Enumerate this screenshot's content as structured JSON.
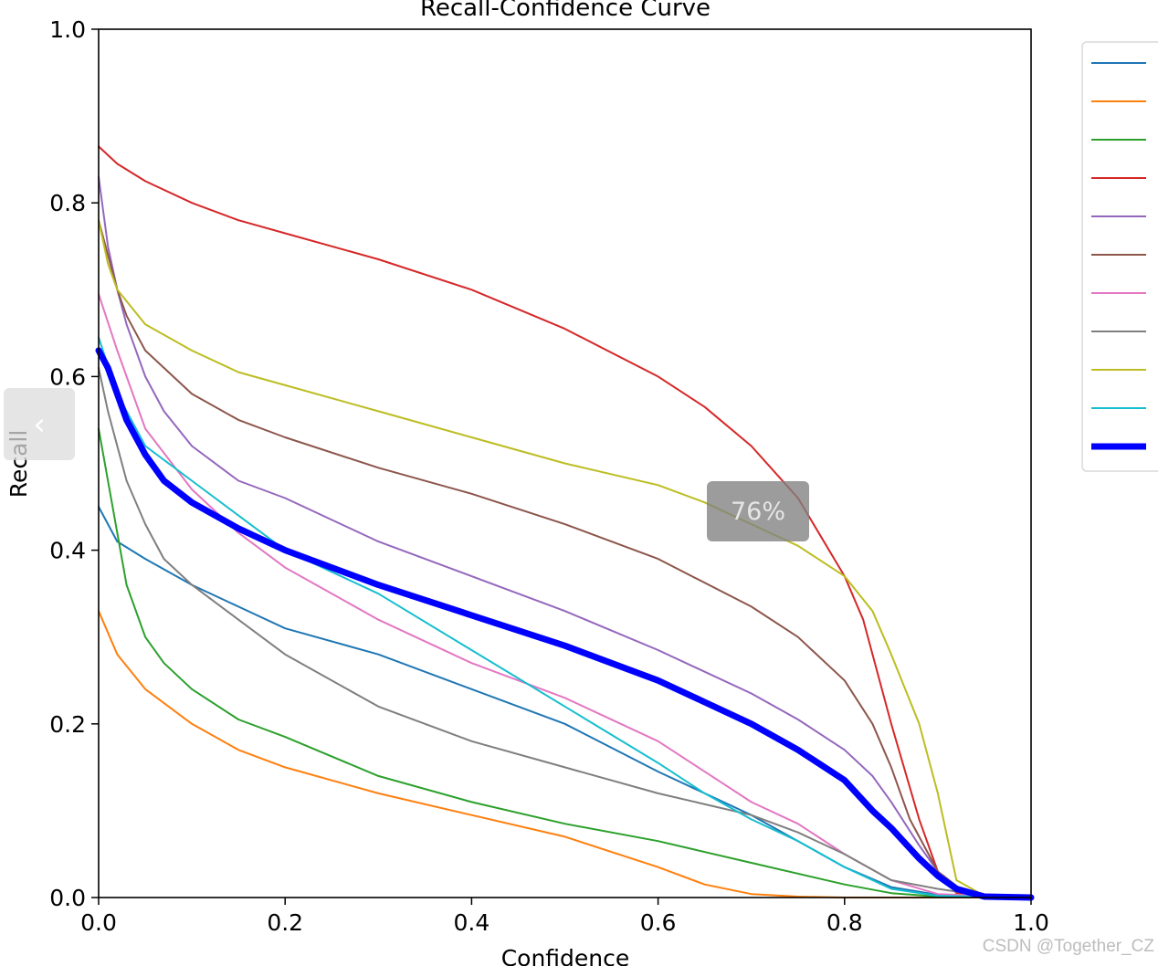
{
  "overlay": {
    "prev_icon": "chevron-left-icon",
    "prev_glyph": "‹",
    "zoom_label": "76%",
    "watermark": "CSDN @Together_CZ"
  },
  "chart_data": {
    "type": "line",
    "title": "Recall-Confidence Curve",
    "xlabel": "Confidence",
    "ylabel": "Recall",
    "xlim": [
      0,
      1
    ],
    "ylim": [
      0,
      1
    ],
    "xticks": [
      "0.0",
      "0.2",
      "0.4",
      "0.6",
      "0.8",
      "1.0"
    ],
    "yticks": [
      "0.0",
      "0.2",
      "0.4",
      "0.6",
      "0.8",
      "1.0"
    ],
    "grid": false,
    "legend": {
      "placement": "right",
      "labels_visible": false
    },
    "series": [
      {
        "color": "#1f77b4",
        "x": [
          0,
          0.02,
          0.05,
          0.1,
          0.15,
          0.2,
          0.3,
          0.4,
          0.5,
          0.6,
          0.7,
          0.75,
          0.8,
          0.85,
          0.9,
          0.95,
          1.0
        ],
        "y": [
          0.45,
          0.41,
          0.39,
          0.36,
          0.335,
          0.31,
          0.28,
          0.24,
          0.2,
          0.145,
          0.095,
          0.065,
          0.035,
          0.012,
          0.003,
          0,
          0
        ]
      },
      {
        "color": "#ff7f0e",
        "x": [
          0,
          0.02,
          0.05,
          0.1,
          0.15,
          0.2,
          0.3,
          0.4,
          0.5,
          0.6,
          0.65,
          0.7,
          0.75,
          0.8,
          0.9,
          1.0
        ],
        "y": [
          0.33,
          0.28,
          0.24,
          0.2,
          0.17,
          0.15,
          0.12,
          0.095,
          0.07,
          0.035,
          0.015,
          0.004,
          0.001,
          0,
          0,
          0
        ]
      },
      {
        "color": "#2ca02c",
        "x": [
          0,
          0.01,
          0.02,
          0.03,
          0.05,
          0.07,
          0.1,
          0.15,
          0.2,
          0.3,
          0.4,
          0.5,
          0.6,
          0.7,
          0.8,
          0.85,
          0.9,
          1.0
        ],
        "y": [
          0.54,
          0.48,
          0.42,
          0.36,
          0.3,
          0.27,
          0.24,
          0.205,
          0.185,
          0.14,
          0.11,
          0.085,
          0.065,
          0.04,
          0.015,
          0.005,
          0.001,
          0
        ]
      },
      {
        "color": "#d62728",
        "x": [
          0,
          0.02,
          0.05,
          0.1,
          0.15,
          0.2,
          0.3,
          0.4,
          0.5,
          0.6,
          0.65,
          0.7,
          0.75,
          0.8,
          0.82,
          0.85,
          0.88,
          0.9,
          0.92,
          0.95,
          1.0
        ],
        "y": [
          0.865,
          0.845,
          0.825,
          0.8,
          0.78,
          0.765,
          0.735,
          0.7,
          0.655,
          0.6,
          0.565,
          0.52,
          0.46,
          0.37,
          0.32,
          0.2,
          0.09,
          0.03,
          0.005,
          0,
          0
        ]
      },
      {
        "color": "#9467bd",
        "x": [
          0,
          0.01,
          0.02,
          0.03,
          0.05,
          0.07,
          0.1,
          0.15,
          0.2,
          0.3,
          0.4,
          0.5,
          0.6,
          0.7,
          0.75,
          0.8,
          0.83,
          0.85,
          0.88,
          0.9,
          0.93,
          1.0
        ],
        "y": [
          0.83,
          0.75,
          0.7,
          0.66,
          0.6,
          0.56,
          0.52,
          0.48,
          0.46,
          0.41,
          0.37,
          0.33,
          0.285,
          0.235,
          0.205,
          0.17,
          0.14,
          0.11,
          0.06,
          0.03,
          0.005,
          0
        ]
      },
      {
        "color": "#8c564b",
        "x": [
          0,
          0.01,
          0.02,
          0.03,
          0.05,
          0.07,
          0.1,
          0.15,
          0.2,
          0.3,
          0.4,
          0.5,
          0.6,
          0.7,
          0.75,
          0.8,
          0.83,
          0.85,
          0.87,
          0.9,
          0.93,
          1.0
        ],
        "y": [
          0.78,
          0.74,
          0.7,
          0.67,
          0.63,
          0.61,
          0.58,
          0.55,
          0.53,
          0.495,
          0.465,
          0.43,
          0.39,
          0.335,
          0.3,
          0.25,
          0.2,
          0.15,
          0.09,
          0.03,
          0.005,
          0
        ]
      },
      {
        "color": "#e377c2",
        "x": [
          0,
          0.02,
          0.05,
          0.1,
          0.15,
          0.2,
          0.3,
          0.4,
          0.5,
          0.6,
          0.65,
          0.7,
          0.75,
          0.8,
          0.85,
          0.9,
          1.0
        ],
        "y": [
          0.695,
          0.63,
          0.54,
          0.47,
          0.42,
          0.38,
          0.32,
          0.27,
          0.23,
          0.18,
          0.145,
          0.11,
          0.085,
          0.05,
          0.02,
          0.004,
          0
        ]
      },
      {
        "color": "#7f7f7f",
        "x": [
          0,
          0.01,
          0.02,
          0.03,
          0.05,
          0.07,
          0.1,
          0.15,
          0.2,
          0.3,
          0.4,
          0.5,
          0.6,
          0.7,
          0.75,
          0.8,
          0.85,
          0.9,
          0.95,
          1.0
        ],
        "y": [
          0.61,
          0.56,
          0.52,
          0.48,
          0.43,
          0.39,
          0.36,
          0.32,
          0.28,
          0.22,
          0.18,
          0.15,
          0.12,
          0.095,
          0.075,
          0.05,
          0.02,
          0.01,
          0.002,
          0
        ]
      },
      {
        "color": "#bcbd22",
        "x": [
          0,
          0.01,
          0.02,
          0.05,
          0.1,
          0.15,
          0.2,
          0.3,
          0.4,
          0.5,
          0.6,
          0.65,
          0.7,
          0.75,
          0.8,
          0.83,
          0.85,
          0.88,
          0.9,
          0.92,
          0.95,
          1.0
        ],
        "y": [
          0.78,
          0.73,
          0.7,
          0.66,
          0.63,
          0.605,
          0.59,
          0.56,
          0.53,
          0.5,
          0.475,
          0.455,
          0.43,
          0.405,
          0.37,
          0.33,
          0.28,
          0.2,
          0.12,
          0.02,
          0.002,
          0
        ]
      },
      {
        "color": "#17becf",
        "x": [
          0,
          0.02,
          0.05,
          0.1,
          0.15,
          0.2,
          0.3,
          0.4,
          0.5,
          0.6,
          0.65,
          0.7,
          0.75,
          0.8,
          0.85,
          0.9,
          1.0
        ],
        "y": [
          0.645,
          0.58,
          0.52,
          0.48,
          0.44,
          0.4,
          0.35,
          0.285,
          0.22,
          0.155,
          0.12,
          0.09,
          0.065,
          0.035,
          0.01,
          0.002,
          0
        ]
      },
      {
        "color": "#0000ff",
        "emphasized": true,
        "x": [
          0,
          0.01,
          0.02,
          0.03,
          0.05,
          0.07,
          0.1,
          0.15,
          0.2,
          0.25,
          0.3,
          0.4,
          0.5,
          0.6,
          0.65,
          0.7,
          0.75,
          0.8,
          0.83,
          0.85,
          0.88,
          0.9,
          0.92,
          0.95,
          1.0
        ],
        "y": [
          0.63,
          0.61,
          0.58,
          0.55,
          0.51,
          0.48,
          0.455,
          0.425,
          0.4,
          0.38,
          0.36,
          0.325,
          0.29,
          0.25,
          0.225,
          0.2,
          0.17,
          0.135,
          0.1,
          0.08,
          0.045,
          0.025,
          0.01,
          0.001,
          0
        ]
      }
    ]
  }
}
